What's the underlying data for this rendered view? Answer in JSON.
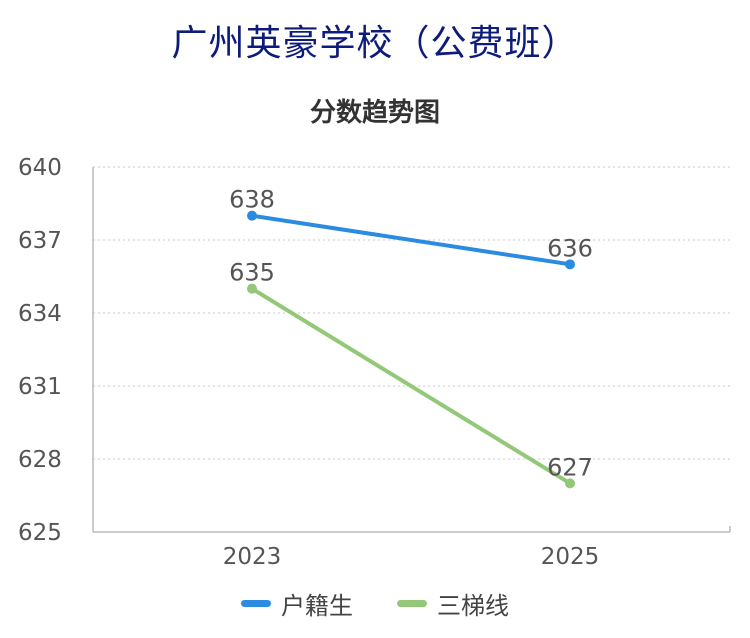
{
  "title": "广州英豪学校（公费班）",
  "chart_data": {
    "type": "line",
    "title": "分数趋势图",
    "categories": [
      "2023",
      "2025"
    ],
    "series": [
      {
        "name": "户籍生",
        "values": [
          638,
          636
        ],
        "color": "#2a8be0"
      },
      {
        "name": "三梯线",
        "values": [
          635,
          627
        ],
        "color": "#93c878"
      }
    ],
    "yticks": [
      625,
      628,
      631,
      634,
      637,
      640
    ],
    "ylim": [
      625,
      640
    ],
    "grid": true,
    "legend": "bottom"
  }
}
